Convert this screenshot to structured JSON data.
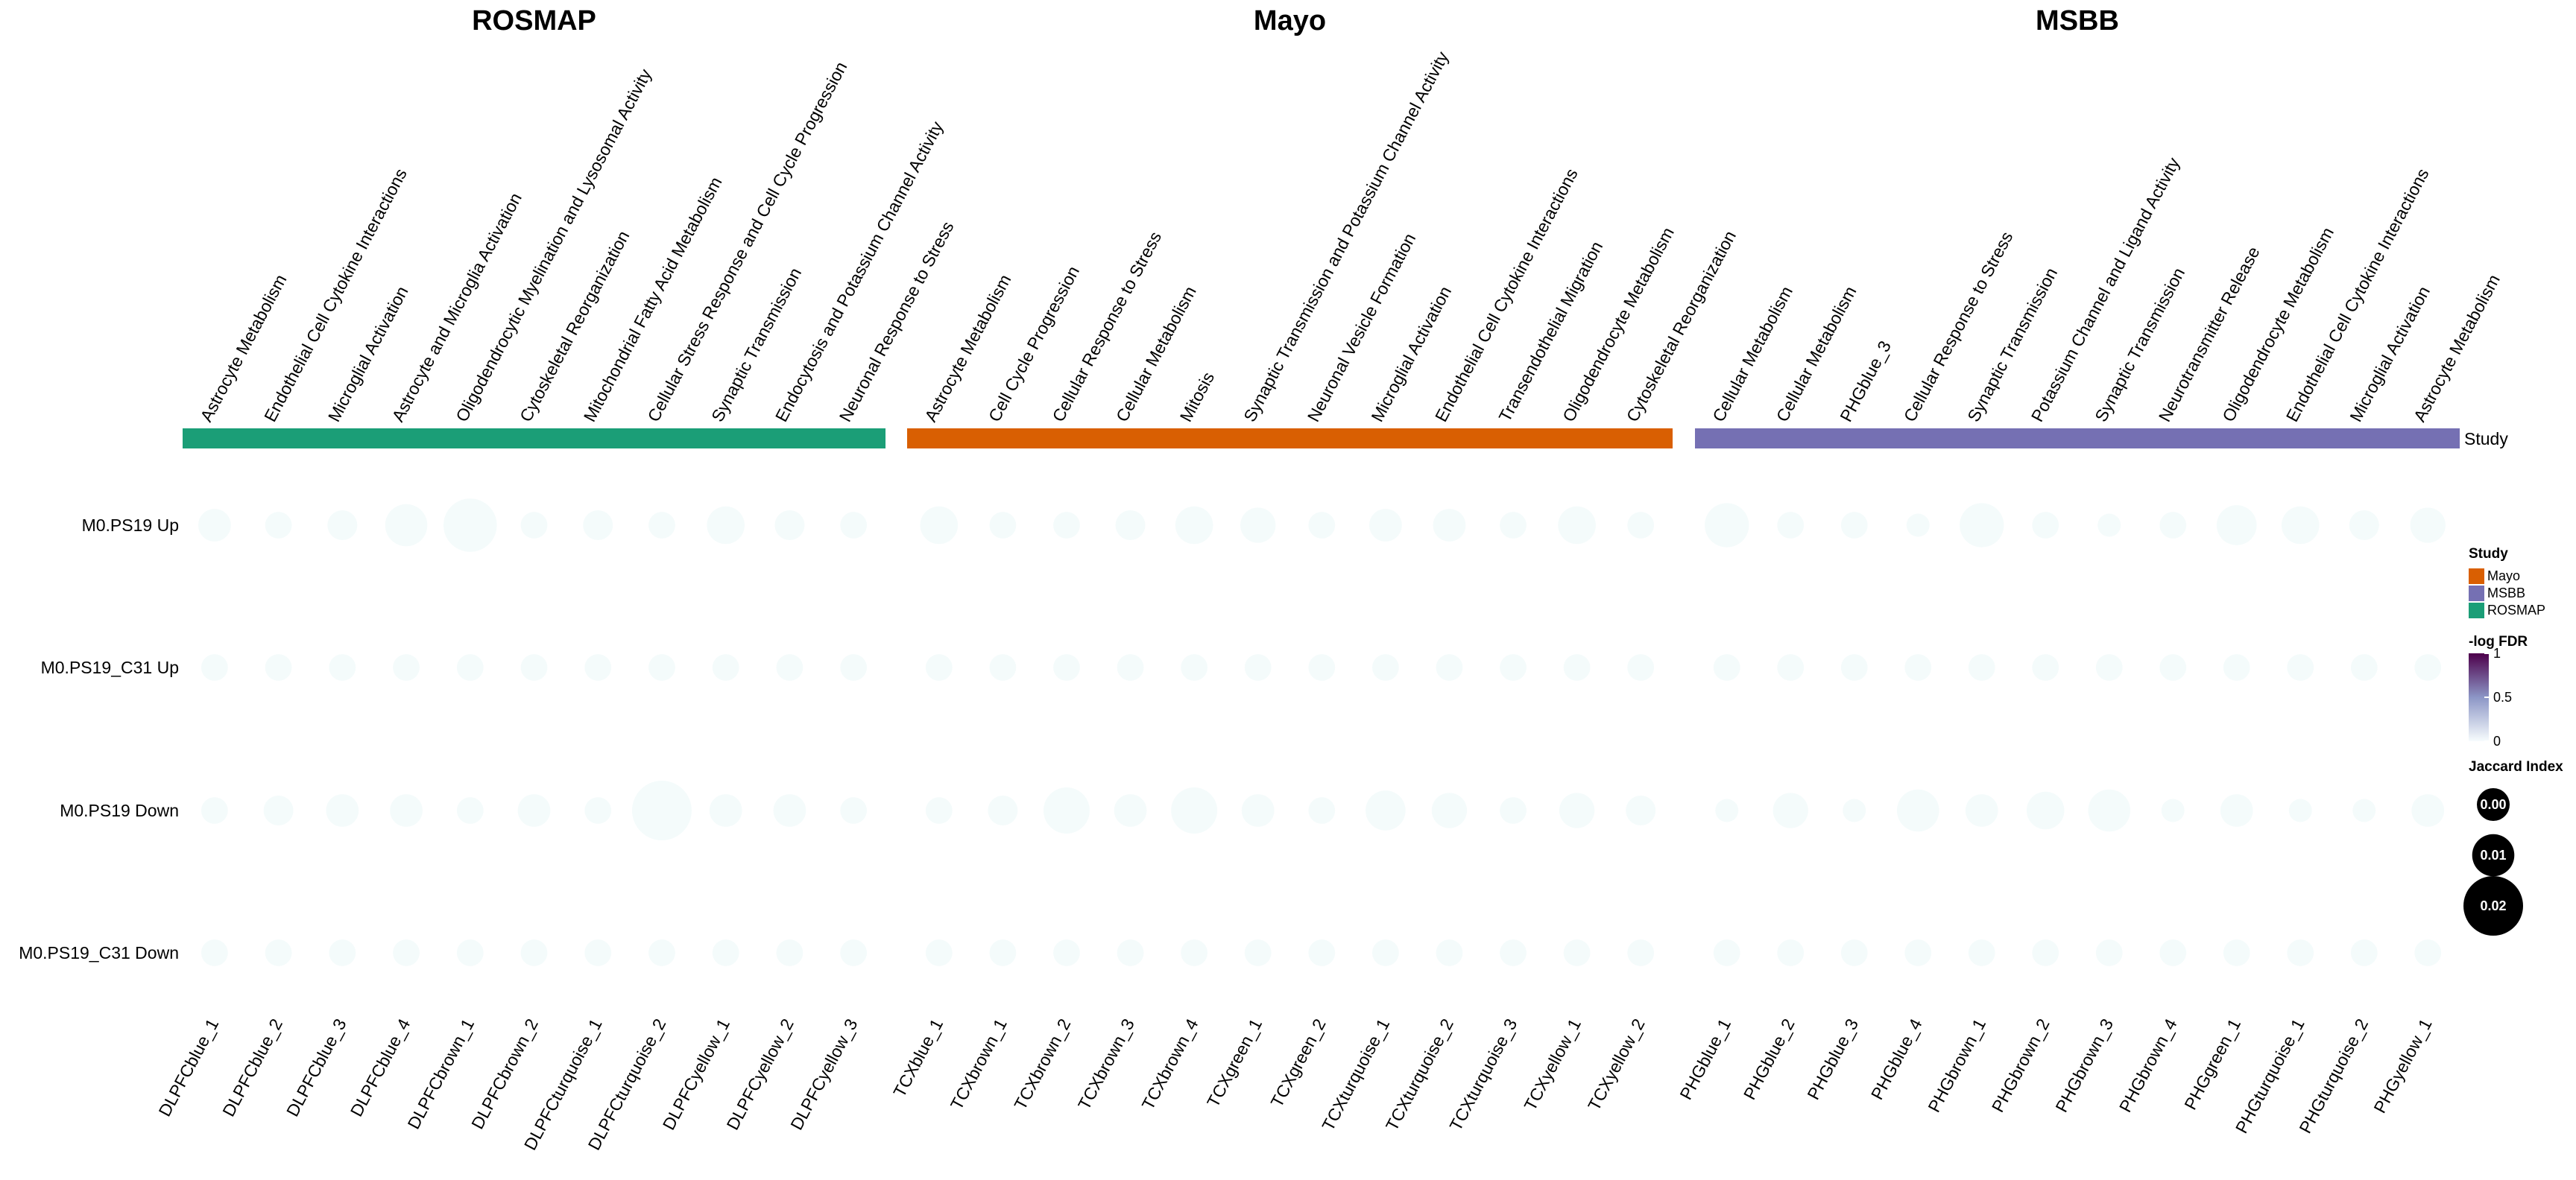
{
  "chart_data": {
    "type": "bubble-heatmap",
    "groups": [
      {
        "name": "ROSMAP",
        "color": "#1b9e77",
        "modules": [
          {
            "id": "DLPFCblue_1",
            "label": "Astrocyte Metabolism"
          },
          {
            "id": "DLPFCblue_2",
            "label": "Endothelial Cell Cytokine Interactions"
          },
          {
            "id": "DLPFCblue_3",
            "label": "Microglial Activation"
          },
          {
            "id": "DLPFCblue_4",
            "label": "Astrocyte and Microglia Activation"
          },
          {
            "id": "DLPFCbrown_1",
            "label": "Oligodendrocytic Myelination and Lysosomal Activity"
          },
          {
            "id": "DLPFCbrown_2",
            "label": "Cytoskeletal Reorganization"
          },
          {
            "id": "DLPFCturquoise_1",
            "label": "Mitochondrial Fatty Acid Metabolism"
          },
          {
            "id": "DLPFCturquoise_2",
            "label": "Cellular Stress Response and Cell Cycle Progression"
          },
          {
            "id": "DLPFCyellow_1",
            "label": "Synaptic Transmission"
          },
          {
            "id": "DLPFCyellow_2",
            "label": "Endocytosis and Potassium Channel Activity"
          },
          {
            "id": "DLPFCyellow_3",
            "label": "Neuronal Response to Stress"
          }
        ]
      },
      {
        "name": "Mayo",
        "color": "#d95f02",
        "modules": [
          {
            "id": "TCXblue_1",
            "label": "Astrocyte Metabolism"
          },
          {
            "id": "TCXbrown_1",
            "label": "Cell Cycle Progression"
          },
          {
            "id": "TCXbrown_2",
            "label": "Cellular Response to Stress"
          },
          {
            "id": "TCXbrown_3",
            "label": "Cellular Metabolism"
          },
          {
            "id": "TCXbrown_4",
            "label": "Mitosis"
          },
          {
            "id": "TCXgreen_1",
            "label": "Synaptic Transmission and Potassium Channel Activity"
          },
          {
            "id": "TCXgreen_2",
            "label": "Neuronal Vesicle Formation"
          },
          {
            "id": "TCXturquoise_1",
            "label": "Microglial Activation"
          },
          {
            "id": "TCXturquoise_2",
            "label": "Endothelial Cell Cytokine Interactions"
          },
          {
            "id": "TCXturquoise_3",
            "label": "Transendothelial Migration"
          },
          {
            "id": "TCXyellow_1",
            "label": "Oligodendrocyte Metabolism"
          },
          {
            "id": "TCXyellow_2",
            "label": "Cytoskeletal Reorganization"
          }
        ]
      },
      {
        "name": "MSBB",
        "color": "#7570b3",
        "modules": [
          {
            "id": "PHGblue_1",
            "label": "Cellular Metabolism"
          },
          {
            "id": "PHGblue_2",
            "label": "Cellular Metabolism"
          },
          {
            "id": "PHGblue_3",
            "label": "PHGblue_3"
          },
          {
            "id": "PHGblue_4",
            "label": "Cellular Response to Stress"
          },
          {
            "id": "PHGbrown_1",
            "label": "Synaptic Transmission"
          },
          {
            "id": "PHGbrown_2",
            "label": "Potassium Channel and Ligand Activity"
          },
          {
            "id": "PHGbrown_3",
            "label": "Synaptic Transmission"
          },
          {
            "id": "PHGbrown_4",
            "label": "Neurotransmitter Release"
          },
          {
            "id": "PHGgreen_1",
            "label": "Oligodendrocyte Metabolism"
          },
          {
            "id": "PHGturquoise_1",
            "label": "Endothelial Cell Cytokine Interactions"
          },
          {
            "id": "PHGturquoise_2",
            "label": "Microglial Activation"
          },
          {
            "id": "PHGyellow_1",
            "label": "Astrocyte Metabolism"
          }
        ]
      }
    ],
    "rows": [
      "M0.PS19 Up",
      "M0.PS19_C31 Up",
      "M0.PS19 Down",
      "M0.PS19_C31 Down"
    ],
    "jaccard": [
      [
        0.006,
        0.004,
        0.005,
        0.01,
        0.016,
        0.004,
        0.005,
        0.004,
        0.008,
        0.005,
        0.004,
        0.008,
        0.004,
        0.004,
        0.005,
        0.008,
        0.007,
        0.004,
        0.006,
        0.006,
        0.004,
        0.008,
        0.004,
        0.011,
        0.004,
        0.004,
        0.003,
        0.011,
        0.004,
        0.003,
        0.004,
        0.009,
        0.008,
        0.005,
        0.007
      ],
      [
        0.004,
        0.004,
        0.004,
        0.004,
        0.004,
        0.004,
        0.004,
        0.004,
        0.004,
        0.004,
        0.004,
        0.004,
        0.004,
        0.004,
        0.004,
        0.004,
        0.004,
        0.004,
        0.004,
        0.004,
        0.004,
        0.004,
        0.004,
        0.004,
        0.004,
        0.004,
        0.004,
        0.004,
        0.004,
        0.004,
        0.004,
        0.004,
        0.004,
        0.004,
        0.004
      ],
      [
        0.004,
        0.005,
        0.006,
        0.006,
        0.004,
        0.006,
        0.004,
        0.02,
        0.006,
        0.006,
        0.004,
        0.004,
        0.005,
        0.012,
        0.006,
        0.012,
        0.006,
        0.004,
        0.009,
        0.007,
        0.004,
        0.007,
        0.005,
        0.003,
        0.007,
        0.003,
        0.01,
        0.006,
        0.008,
        0.01,
        0.003,
        0.006,
        0.003,
        0.003,
        0.006
      ],
      [
        0.004,
        0.004,
        0.004,
        0.004,
        0.004,
        0.004,
        0.004,
        0.004,
        0.004,
        0.004,
        0.004,
        0.004,
        0.004,
        0.004,
        0.004,
        0.004,
        0.004,
        0.004,
        0.004,
        0.004,
        0.004,
        0.004,
        0.004,
        0.004,
        0.004,
        0.004,
        0.004,
        0.004,
        0.004,
        0.004,
        0.004,
        0.004,
        0.004,
        0.004,
        0.004
      ]
    ],
    "neg_log_fdr": "0 for all cells",
    "color_scale": {
      "title": "-log FDR",
      "ticks": [
        0,
        0.5,
        1
      ],
      "colors": [
        "#f7fcfd",
        "#8c96c6",
        "#4d004b"
      ]
    },
    "size_scale": {
      "title": "Jaccard Index",
      "ticks": [
        0.0,
        0.01,
        0.02
      ],
      "tick_labels": [
        "0.00",
        "0.01",
        "0.02"
      ]
    },
    "annotation": {
      "label": "Study"
    },
    "legend": {
      "study_title": "Study",
      "study_entries": [
        {
          "name": "Mayo",
          "color": "#d95f02"
        },
        {
          "name": "MSBB",
          "color": "#7570b3"
        },
        {
          "name": "ROSMAP",
          "color": "#1b9e77"
        }
      ],
      "placement": "right"
    }
  }
}
